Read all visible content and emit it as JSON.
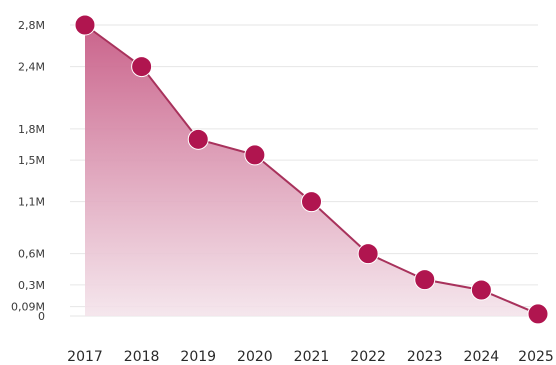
{
  "chart_data": {
    "type": "area",
    "title": "",
    "xlabel": "",
    "ylabel": "",
    "categories": [
      "2017",
      "2018",
      "2019",
      "2020",
      "2021",
      "2022",
      "2023",
      "2024",
      "2025"
    ],
    "series": [
      {
        "values": [
          2.8,
          2.4,
          1.7,
          1.55,
          1.1,
          0.6,
          0.35,
          0.25,
          0.02
        ]
      }
    ],
    "y_ticks": [
      {
        "value": 2.8,
        "label": "2,8M"
      },
      {
        "value": 2.4,
        "label": "2,4M"
      },
      {
        "value": 1.8,
        "label": "1,8M"
      },
      {
        "value": 1.5,
        "label": "1,5M"
      },
      {
        "value": 1.1,
        "label": "1,1M"
      },
      {
        "value": 0.6,
        "label": "0,6M"
      },
      {
        "value": 0.3,
        "label": "0,3M"
      },
      {
        "value": 0.09,
        "label": "0,09M"
      },
      {
        "value": 0,
        "label": "0"
      }
    ],
    "ylim": [
      0,
      2.8
    ],
    "grid": true,
    "legend": "none",
    "colors": {
      "line": "#a8325c",
      "marker": "#b0154f",
      "fill_top": "#c75b85",
      "fill_bottom": "#f4e4eb",
      "grid": "#e6e6e6"
    }
  }
}
